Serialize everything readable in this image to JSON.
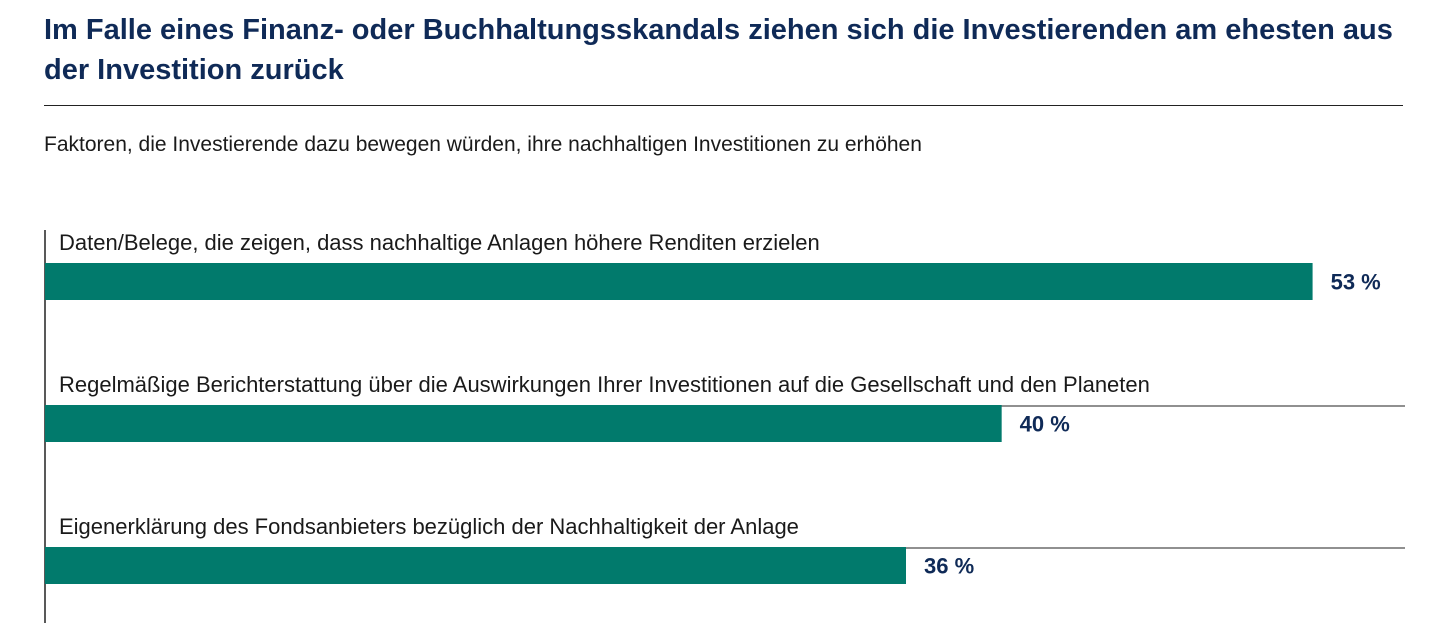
{
  "header": {
    "title": "Im Falle eines Finanz- oder Buchhaltungsskandals ziehen sich die Investierenden am ehesten aus der Investition zurück",
    "subtitle": "Faktoren, die Investierende dazu bewegen würden, ihre nachhaltigen Investitionen zu erhöhen"
  },
  "colors": {
    "bar": "#017a6c",
    "title": "#0f2a57",
    "value_label": "#0f2a57",
    "text": "#1a1a1a",
    "axis": "#222222"
  },
  "chart_data": {
    "type": "bar",
    "orientation": "horizontal",
    "title": "Im Falle eines Finanz- oder Buchhaltungsskandals ziehen sich die Investierenden am ehesten aus der Investition zurück",
    "subtitle": "Faktoren, die Investierende dazu bewegen würden, ihre nachhaltigen Investitionen zu erhöhen",
    "categories": [
      "Daten/Belege, die zeigen, dass nachhaltige Anlagen höhere Renditen erzielen",
      "Regelmäßige Berichterstattung über die Auswirkungen Ihrer Investitionen auf die Gesellschaft und den Planeten",
      "Eigenerklärung des Fondsanbieters bezüglich der Nachhaltigkeit der Anlage"
    ],
    "values": [
      53,
      40,
      36
    ],
    "value_labels": [
      "53 %",
      "40 %",
      "36 %"
    ],
    "unit": "%",
    "xlim": [
      0,
      60
    ],
    "grid": false,
    "legend": "none"
  }
}
